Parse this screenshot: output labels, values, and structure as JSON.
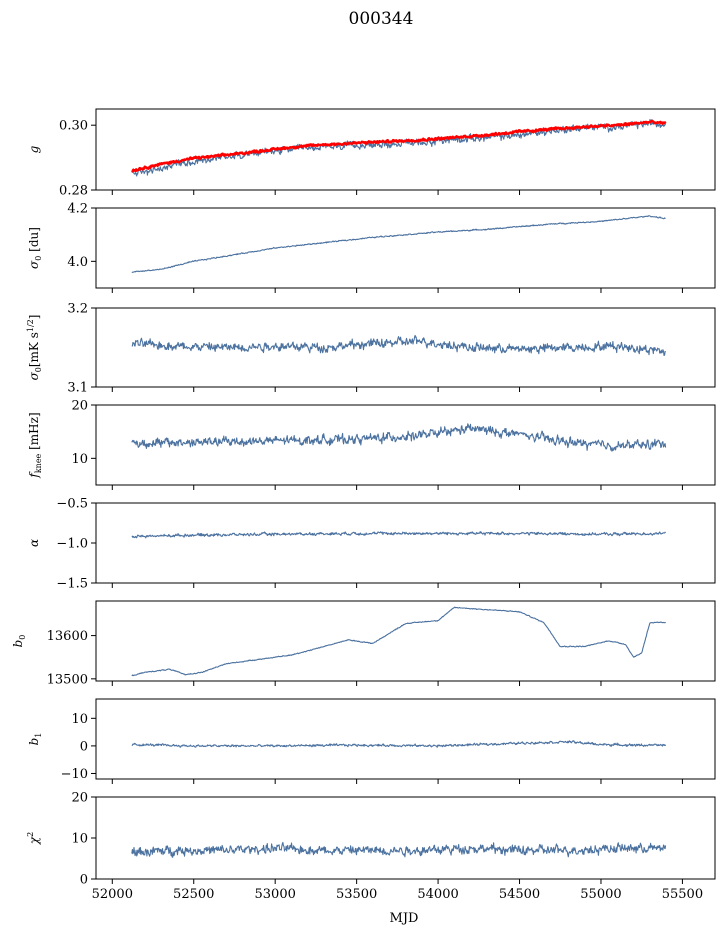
{
  "title": "000344",
  "colors": {
    "series": "#4c72a0",
    "overlay": "#ff0000"
  },
  "chart_data": {
    "type": "line",
    "xlabel": "MJD",
    "xlim": [
      51900,
      55700
    ],
    "xticks": [
      "52000",
      "52500",
      "53000",
      "53500",
      "54000",
      "54500",
      "55000",
      "55500"
    ],
    "xtick_values": [
      52000,
      52500,
      53000,
      53500,
      54000,
      54500,
      55000,
      55500
    ],
    "x_range": [
      52120,
      55400
    ],
    "panels": [
      {
        "ylabel": "g",
        "ylim": [
          0.28,
          0.305
        ],
        "yticks": [
          "0.28",
          "0.30"
        ],
        "ytick_values": [
          0.28,
          0.3
        ],
        "series": [
          {
            "color": "#4c72a0",
            "points": [
              [
                52120,
                0.2852
              ],
              [
                52200,
                0.2857
              ],
              [
                52300,
                0.2864
              ],
              [
                52400,
                0.2883
              ],
              [
                52500,
                0.2888
              ],
              [
                52700,
                0.2905
              ],
              [
                52900,
                0.2915
              ],
              [
                53100,
                0.2925
              ],
              [
                53300,
                0.2932
              ],
              [
                53500,
                0.2938
              ],
              [
                53700,
                0.2942
              ],
              [
                53900,
                0.2947
              ],
              [
                54100,
                0.2956
              ],
              [
                54300,
                0.2962
              ],
              [
                54500,
                0.297
              ],
              [
                54700,
                0.2983
              ],
              [
                54900,
                0.2993
              ],
              [
                55100,
                0.2995
              ],
              [
                55300,
                0.3005
              ],
              [
                55400,
                0.3003
              ]
            ],
            "noise": 0.0015
          },
          {
            "color": "#ff0000",
            "points": [
              [
                52120,
                0.286
              ],
              [
                52300,
                0.288
              ],
              [
                52500,
                0.2898
              ],
              [
                52700,
                0.2908
              ],
              [
                52900,
                0.292
              ],
              [
                53100,
                0.2932
              ],
              [
                53300,
                0.294
              ],
              [
                53500,
                0.2945
              ],
              [
                53700,
                0.295
              ],
              [
                53900,
                0.2955
              ],
              [
                54100,
                0.2962
              ],
              [
                54300,
                0.297
              ],
              [
                54500,
                0.298
              ],
              [
                54700,
                0.2988
              ],
              [
                54900,
                0.2995
              ],
              [
                55100,
                0.3
              ],
              [
                55300,
                0.301
              ],
              [
                55400,
                0.3005
              ]
            ],
            "noise": 0.0005
          }
        ]
      },
      {
        "ylabel": "σ0 [du]",
        "ylim": [
          3.9,
          4.2
        ],
        "yticks": [
          "4.0",
          "4.2"
        ],
        "ytick_values": [
          4.0,
          4.2
        ],
        "series": [
          {
            "color": "#4c72a0",
            "points": [
              [
                52120,
                3.96
              ],
              [
                52300,
                3.97
              ],
              [
                52500,
                4.0
              ],
              [
                52800,
                4.03
              ],
              [
                53000,
                4.05
              ],
              [
                53300,
                4.07
              ],
              [
                53600,
                4.09
              ],
              [
                54000,
                4.11
              ],
              [
                54300,
                4.12
              ],
              [
                54500,
                4.13
              ],
              [
                54700,
                4.14
              ],
              [
                55000,
                4.15
              ],
              [
                55300,
                4.17
              ],
              [
                55400,
                4.16
              ]
            ],
            "noise": 0.003
          }
        ]
      },
      {
        "ylabel": "σ0[mK s^1/2]",
        "ylim": [
          3.1,
          3.2
        ],
        "yticks": [
          "3.1",
          "3.2"
        ],
        "ytick_values": [
          3.1,
          3.2
        ],
        "series": [
          {
            "color": "#4c72a0",
            "points": [
              [
                52120,
                3.155
              ],
              [
                52400,
                3.152
              ],
              [
                52700,
                3.15
              ],
              [
                53000,
                3.152
              ],
              [
                53300,
                3.15
              ],
              [
                53600,
                3.155
              ],
              [
                53900,
                3.158
              ],
              [
                54200,
                3.15
              ],
              [
                54500,
                3.148
              ],
              [
                54800,
                3.15
              ],
              [
                55100,
                3.152
              ],
              [
                55400,
                3.145
              ]
            ],
            "noise": 0.008
          }
        ]
      },
      {
        "ylabel": "f_knee [mHz]",
        "ylim": [
          5,
          20
        ],
        "yticks": [
          "10",
          "20"
        ],
        "ytick_values": [
          10,
          20
        ],
        "series": [
          {
            "color": "#4c72a0",
            "points": [
              [
                52120,
                12.8
              ],
              [
                52500,
                13.0
              ],
              [
                53000,
                13.3
              ],
              [
                53500,
                13.6
              ],
              [
                53900,
                14.3
              ],
              [
                54200,
                15.6
              ],
              [
                54500,
                14.5
              ],
              [
                54800,
                13.0
              ],
              [
                55100,
                12.3
              ],
              [
                55400,
                12.8
              ]
            ],
            "noise": 1.2
          }
        ]
      },
      {
        "ylabel": "α",
        "ylim": [
          -1.5,
          -0.5
        ],
        "yticks": [
          "−1.5",
          "−1.0",
          "−0.5"
        ],
        "ytick_values": [
          -1.5,
          -1.0,
          -0.5
        ],
        "series": [
          {
            "color": "#4c72a0",
            "points": [
              [
                52120,
                -0.92
              ],
              [
                52500,
                -0.9
              ],
              [
                53000,
                -0.89
              ],
              [
                53500,
                -0.88
              ],
              [
                54000,
                -0.88
              ],
              [
                54500,
                -0.88
              ],
              [
                55000,
                -0.89
              ],
              [
                55400,
                -0.88
              ]
            ],
            "noise": 0.025
          }
        ]
      },
      {
        "ylabel": "b0",
        "ylim": [
          13495,
          13680
        ],
        "yticks": [
          "13500",
          "13600"
        ],
        "ytick_values": [
          13500,
          13600
        ],
        "series": [
          {
            "color": "#4c72a0",
            "points": [
              [
                52130,
                13508
              ],
              [
                52200,
                13515
              ],
              [
                52350,
                13522
              ],
              [
                52450,
                13510
              ],
              [
                52550,
                13515
              ],
              [
                52700,
                13535
              ],
              [
                52900,
                13545
              ],
              [
                53100,
                13555
              ],
              [
                53300,
                13575
              ],
              [
                53450,
                13590
              ],
              [
                53600,
                13582
              ],
              [
                53800,
                13628
              ],
              [
                54000,
                13635
              ],
              [
                54100,
                13665
              ],
              [
                54300,
                13660
              ],
              [
                54500,
                13655
              ],
              [
                54650,
                13630
              ],
              [
                54750,
                13575
              ],
              [
                54900,
                13575
              ],
              [
                55050,
                13588
              ],
              [
                55150,
                13580
              ],
              [
                55200,
                13550
              ],
              [
                55250,
                13560
              ],
              [
                55300,
                13630
              ],
              [
                55400,
                13630
              ]
            ],
            "noise": 1.5
          }
        ]
      },
      {
        "ylabel": "b1",
        "ylim": [
          -12,
          17
        ],
        "yticks": [
          "−10",
          "0",
          "10"
        ],
        "ytick_values": [
          -10,
          0,
          10
        ],
        "series": [
          {
            "color": "#4c72a0",
            "points": [
              [
                52120,
                0.5
              ],
              [
                52500,
                0.0
              ],
              [
                53000,
                0.0
              ],
              [
                53500,
                0.3
              ],
              [
                54000,
                0.0
              ],
              [
                54500,
                1.0
              ],
              [
                54800,
                1.5
              ],
              [
                55000,
                0.5
              ],
              [
                55200,
                0.3
              ],
              [
                55400,
                0.2
              ]
            ],
            "noise": 0.6
          }
        ]
      },
      {
        "ylabel": "χ^2",
        "ylim": [
          0,
          20
        ],
        "yticks": [
          "0",
          "10",
          "20"
        ],
        "ytick_values": [
          0,
          10,
          20
        ],
        "series": [
          {
            "color": "#4c72a0",
            "points": [
              [
                52120,
                6.5
              ],
              [
                52400,
                7.0
              ],
              [
                52700,
                7.0
              ],
              [
                53000,
                7.5
              ],
              [
                53300,
                7.0
              ],
              [
                53600,
                7.0
              ],
              [
                53900,
                7.0
              ],
              [
                54200,
                7.5
              ],
              [
                54500,
                7.0
              ],
              [
                54800,
                7.0
              ],
              [
                55100,
                7.5
              ],
              [
                55400,
                7.5
              ]
            ],
            "noise": 1.6
          }
        ]
      }
    ]
  }
}
